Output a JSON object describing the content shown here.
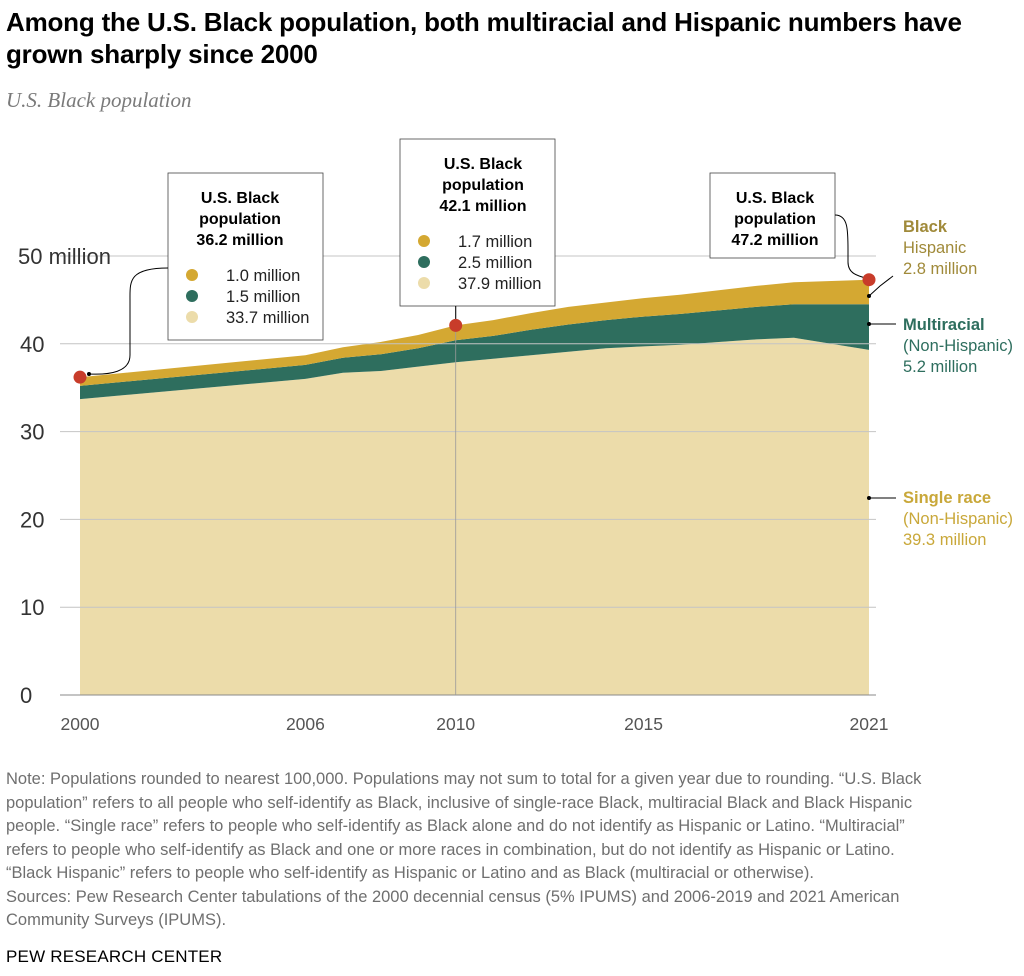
{
  "title": "Among the U.S. Black population, both multiracial and Hispanic numbers have grown sharply since 2000",
  "subtitle": "U.S. Black population",
  "chart_data": {
    "type": "area",
    "stacked": true,
    "x": [
      2000,
      2006,
      2007,
      2008,
      2009,
      2010,
      2011,
      2012,
      2013,
      2014,
      2015,
      2016,
      2017,
      2018,
      2019,
      2021
    ],
    "series": [
      {
        "name": "Single race",
        "values": [
          33.7,
          36.0,
          36.7,
          36.9,
          37.4,
          37.9,
          38.3,
          38.7,
          39.1,
          39.5,
          39.7,
          39.9,
          40.2,
          40.5,
          40.7,
          39.3
        ]
      },
      {
        "name": "Multiracial",
        "values": [
          1.5,
          1.6,
          1.7,
          1.9,
          2.1,
          2.5,
          2.6,
          2.9,
          3.1,
          3.2,
          3.4,
          3.5,
          3.6,
          3.7,
          3.8,
          5.2
        ]
      },
      {
        "name": "Black Hispanic",
        "values": [
          1.0,
          1.1,
          1.2,
          1.4,
          1.5,
          1.7,
          1.8,
          1.9,
          2.0,
          2.0,
          2.1,
          2.2,
          2.3,
          2.4,
          2.5,
          2.8
        ]
      }
    ],
    "ylim": [
      0,
      50
    ],
    "y_ticks": [
      0,
      10,
      20,
      30,
      40,
      50
    ],
    "y_tick_labels": [
      "0",
      "10",
      "20",
      "30",
      "40",
      "50 million"
    ],
    "x_ticks": [
      2000,
      2006,
      2010,
      2015,
      2021
    ],
    "x_tick_labels": [
      "2000",
      "2006",
      "2010",
      "2015",
      "2021"
    ],
    "grid": true,
    "colors": {
      "single_race": "#ecdcaa",
      "multiracial": "#2e6e5e",
      "black_hispanic": "#d4a832",
      "marker": "#c83c2a",
      "hispanic_label": "#a08a3a",
      "multiracial_label": "#2e6e5e",
      "single_label": "#c9a83a"
    },
    "callouts": [
      {
        "year": 2000,
        "header": [
          "U.S. Black",
          "population",
          "36.2 million"
        ],
        "items": [
          {
            "series": "black_hispanic",
            "text": "1.0 million"
          },
          {
            "series": "multiracial",
            "text": "1.5 million"
          },
          {
            "series": "single_race",
            "text": "33.7 million"
          }
        ]
      },
      {
        "year": 2010,
        "header": [
          "U.S. Black",
          "population",
          "42.1 million"
        ],
        "items": [
          {
            "series": "black_hispanic",
            "text": "1.7 million"
          },
          {
            "series": "multiracial",
            "text": "2.5 million"
          },
          {
            "series": "single_race",
            "text": "37.9 million"
          }
        ]
      },
      {
        "year": 2021,
        "header": [
          "U.S. Black",
          "population",
          "47.2 million"
        ],
        "items": []
      }
    ],
    "end_labels": [
      {
        "series": "black_hispanic",
        "lines": [
          "Black",
          "Hispanic",
          "2.8 million"
        ]
      },
      {
        "series": "multiracial",
        "lines": [
          "Multiracial",
          "(Non-Hispanic)",
          "5.2 million"
        ]
      },
      {
        "series": "single_race",
        "lines": [
          "Single race",
          "(Non-Hispanic)",
          "39.3 million"
        ]
      }
    ]
  },
  "note": [
    "Note: Populations rounded to nearest 100,000. Populations may not sum to total for a given year due to rounding. “U.S. Black",
    "population” refers to all people who self-identify as Black, inclusive of single-race Black, multiracial Black and Black Hispanic",
    "people. “Single race” refers to people who self-identify as Black alone and do not identify as Hispanic or Latino. “Multiracial”",
    "refers to people who self-identify as Black and one or more races in combination, but do not identify as Hispanic or Latino.",
    "“Black Hispanic” refers to people who self-identify as Hispanic or Latino and as Black (multiracial or otherwise).",
    "Sources: Pew Research Center tabulations of the 2000 decennial census (5% IPUMS) and 2006-2019 and 2021 American",
    "Community Surveys (IPUMS)."
  ],
  "footer": "PEW RESEARCH CENTER"
}
